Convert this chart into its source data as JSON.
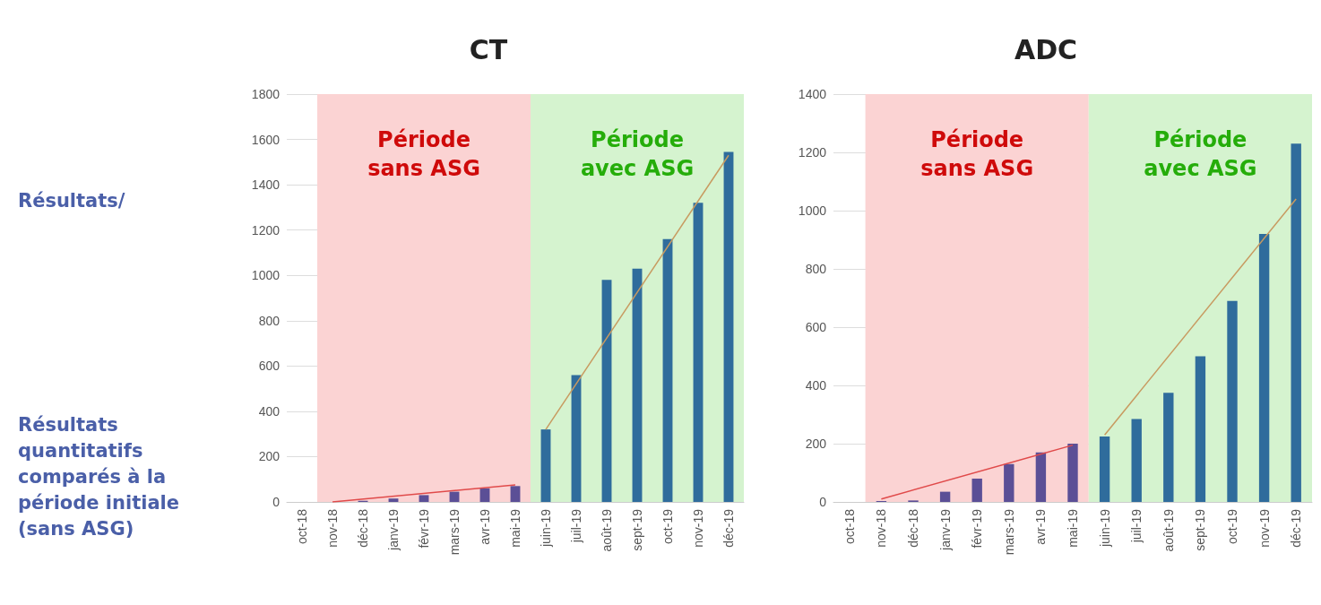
{
  "chart_data": [
    {
      "type": "other",
      "annotations": [
        "Résultats/",
        "Résultats quantitatifs comparés à la période initiale (sans ASG)"
      ]
    },
    {
      "type": "bar",
      "title": "CT",
      "categories": [
        "oct-18",
        "nov-18",
        "déc-18",
        "janv-19",
        "févr-19",
        "mars-19",
        "avr-19",
        "mai-19",
        "juin-19",
        "juil-19",
        "août-19",
        "sept-19",
        "oct-19",
        "nov-19",
        "déc-19"
      ],
      "series": [
        {
          "type": "bar",
          "colors": [
            "#5b4f96",
            "#5b4f96",
            "#5b4f96",
            "#5b4f96",
            "#5b4f96",
            "#5b4f96",
            "#5b4f96",
            "#5b4f96",
            "#2f6c9c",
            "#2f6c9c",
            "#2f6c9c",
            "#2f6c9c",
            "#2f6c9c",
            "#2f6c9c",
            "#2f6c9c"
          ],
          "values": [
            0,
            null,
            5,
            15,
            30,
            45,
            60,
            70,
            320,
            560,
            980,
            1030,
            1160,
            1320,
            1545
          ]
        },
        {
          "type": "line",
          "color": "#e04a4a",
          "x": [
            "nov-18",
            "mai-19"
          ],
          "values": [
            0,
            75
          ]
        },
        {
          "type": "line",
          "color": "#c89a60",
          "x": [
            "juin-19",
            "déc-19"
          ],
          "values": [
            320,
            1530
          ]
        }
      ],
      "bands": [
        {
          "axis": "x",
          "from": "nov-18",
          "to": "mai-19",
          "label": "Période\nsans ASG",
          "color": "#fbd3d3"
        },
        {
          "axis": "x",
          "from": "juin-19",
          "to": "déc-19",
          "label": "Période\navec ASG",
          "color": "#d5f3cf"
        }
      ],
      "ylim": [
        0,
        1800
      ],
      "yticks": [
        0,
        200,
        400,
        600,
        800,
        1000,
        1200,
        1400,
        1600,
        1800
      ],
      "grid": "y",
      "marker": "none"
    },
    {
      "type": "bar",
      "title": "ADC",
      "categories": [
        "oct-18",
        "nov-18",
        "déc-18",
        "janv-19",
        "févr-19",
        "mars-19",
        "avr-19",
        "mai-19",
        "juin-19",
        "juil-19",
        "août-19",
        "sept-19",
        "oct-19",
        "nov-19",
        "déc-19"
      ],
      "series": [
        {
          "type": "bar",
          "colors": [
            "#5b4f96",
            "#5b4f96",
            "#5b4f96",
            "#5b4f96",
            "#5b4f96",
            "#5b4f96",
            "#5b4f96",
            "#5b4f96",
            "#2f6c9c",
            "#2f6c9c",
            "#2f6c9c",
            "#2f6c9c",
            "#2f6c9c",
            "#2f6c9c",
            "#2f6c9c"
          ],
          "values": [
            0,
            3,
            5,
            35,
            80,
            130,
            170,
            200,
            225,
            285,
            375,
            500,
            690,
            920,
            1230
          ]
        },
        {
          "type": "line",
          "color": "#e04a4a",
          "x": [
            "nov-18",
            "mai-19"
          ],
          "values": [
            10,
            195
          ]
        },
        {
          "type": "line",
          "color": "#c89a60",
          "x": [
            "juin-19",
            "déc-19"
          ],
          "values": [
            230,
            1040
          ]
        }
      ],
      "bands": [
        {
          "axis": "x",
          "from": "nov-18",
          "to": "mai-19",
          "label": "Période\nsans ASG",
          "color": "#fbd3d3"
        },
        {
          "axis": "x",
          "from": "juin-19",
          "to": "déc-19",
          "label": "Période\navec ASG",
          "color": "#d5f3cf"
        }
      ],
      "ylim": [
        0,
        1400
      ],
      "yticks": [
        0,
        200,
        400,
        600,
        800,
        1000,
        1200,
        1400
      ],
      "grid": "y",
      "marker": "none"
    }
  ]
}
